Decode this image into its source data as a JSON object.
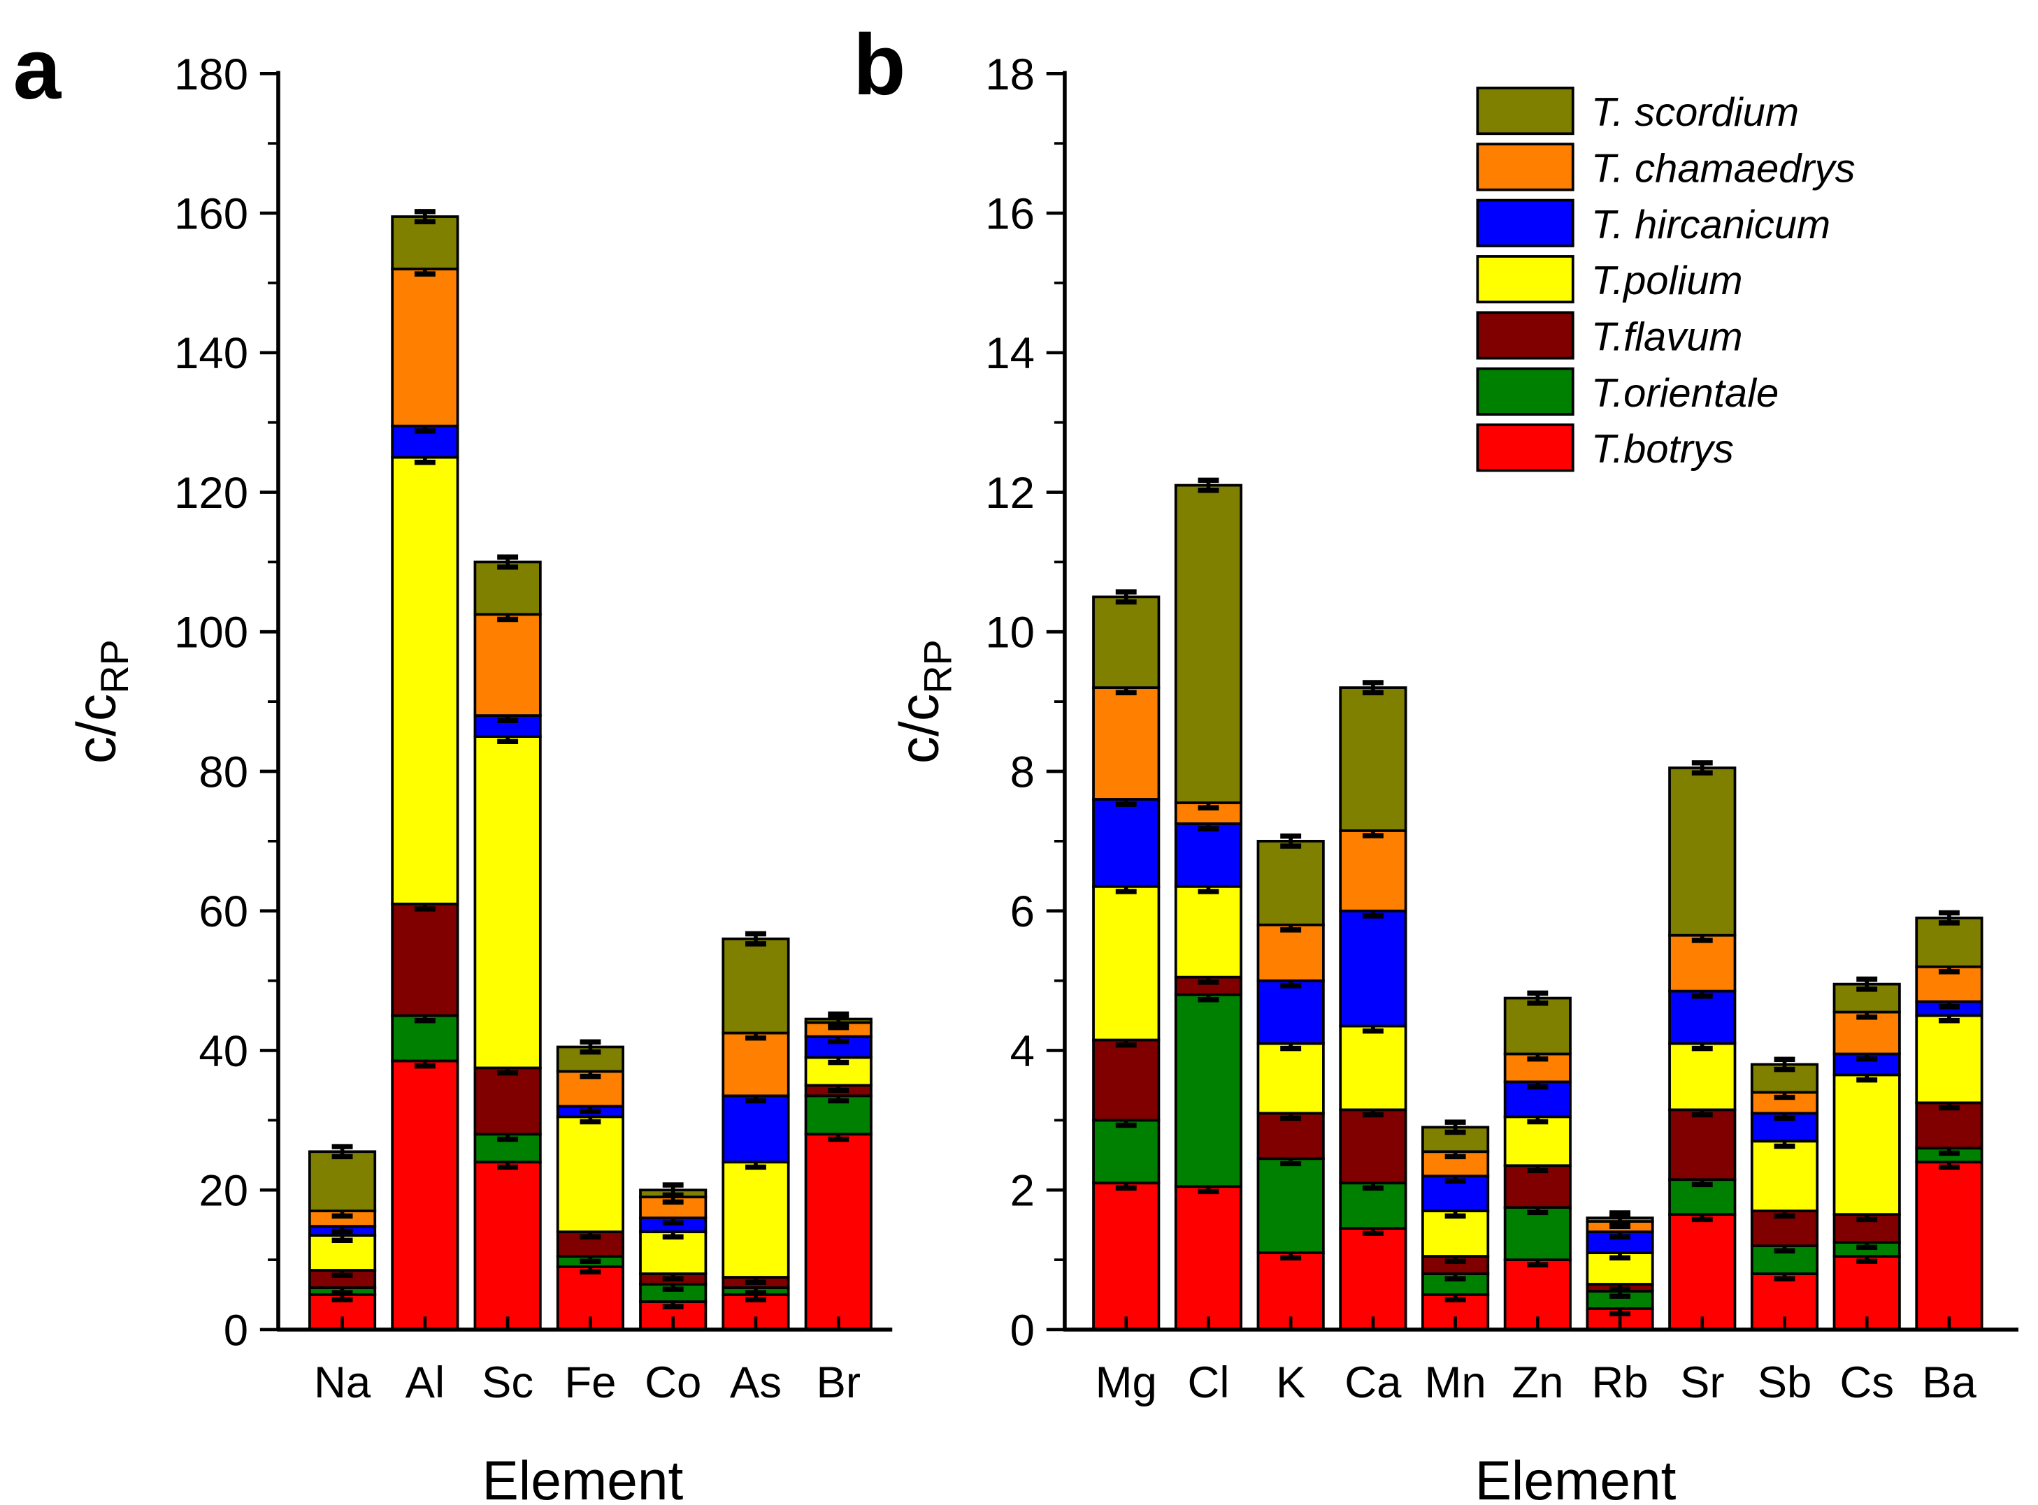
{
  "chart_data": [
    {
      "type": "bar",
      "stacked": true,
      "panel_label": "a",
      "xlabel": "Element",
      "ylabel": "c/c",
      "ylabel_sub": "RP",
      "ylim": [
        0,
        180
      ],
      "yticks": [
        0,
        20,
        40,
        60,
        80,
        100,
        120,
        140,
        160,
        180
      ],
      "categories": [
        "Na",
        "Al",
        "Sc",
        "Fe",
        "Co",
        "As",
        "Br"
      ],
      "series": [
        {
          "name": "T.botrys",
          "color": "#ff0000",
          "values": [
            5,
            38.5,
            24,
            9,
            4,
            5,
            28
          ]
        },
        {
          "name": "T.orientale",
          "color": "#008000",
          "values": [
            1,
            6.5,
            4,
            1.5,
            2.5,
            1,
            5.5
          ]
        },
        {
          "name": "T.flavum",
          "color": "#800000",
          "values": [
            2.5,
            16,
            9.5,
            3.5,
            1.5,
            1.5,
            1.5
          ]
        },
        {
          "name": "T.polium",
          "color": "#ffff00",
          "values": [
            5,
            64,
            47.5,
            16.5,
            6,
            16.5,
            4
          ]
        },
        {
          "name": "T. hircanicum",
          "color": "#0000ff",
          "values": [
            1.3,
            4.5,
            3,
            1.5,
            2,
            9.5,
            3
          ]
        },
        {
          "name": "T. chamaedrys",
          "color": "#ff8000",
          "values": [
            2.2,
            22.5,
            14.5,
            5,
            3,
            9,
            2
          ]
        },
        {
          "name": "T. scordium",
          "color": "#808000",
          "values": [
            8.5,
            7.5,
            7.5,
            3.5,
            1,
            13.5,
            0.5
          ]
        }
      ]
    },
    {
      "type": "bar",
      "stacked": true,
      "panel_label": "b",
      "xlabel": "Element",
      "ylabel": "c/c",
      "ylabel_sub": "RP",
      "ylim": [
        0,
        18
      ],
      "yticks": [
        0,
        2,
        4,
        6,
        8,
        10,
        12,
        14,
        16,
        18
      ],
      "legend_position": "top-right",
      "categories": [
        "Mg",
        "Cl",
        "K",
        "Ca",
        "Mn",
        "Zn",
        "Rb",
        "Sr",
        "Sb",
        "Cs",
        "Ba"
      ],
      "series": [
        {
          "name": "T.botrys",
          "color": "#ff0000",
          "values": [
            2.1,
            2.05,
            1.1,
            1.45,
            0.5,
            1.0,
            0.3,
            1.65,
            0.8,
            1.05,
            2.4
          ]
        },
        {
          "name": "T.orientale",
          "color": "#008000",
          "values": [
            0.9,
            2.75,
            1.35,
            0.65,
            0.3,
            0.75,
            0.25,
            0.5,
            0.4,
            0.2,
            0.2
          ]
        },
        {
          "name": "T.flavum",
          "color": "#800000",
          "values": [
            1.15,
            0.25,
            0.65,
            1.05,
            0.25,
            0.6,
            0.1,
            1.0,
            0.5,
            0.4,
            0.65
          ]
        },
        {
          "name": "T.polium",
          "color": "#ffff00",
          "values": [
            2.2,
            1.3,
            1.0,
            1.2,
            0.65,
            0.7,
            0.45,
            0.95,
            1.0,
            2.0,
            1.25
          ]
        },
        {
          "name": "T. hircanicum",
          "color": "#0000ff",
          "values": [
            1.25,
            0.9,
            0.9,
            1.65,
            0.5,
            0.5,
            0.3,
            0.75,
            0.4,
            0.3,
            0.2
          ]
        },
        {
          "name": "T. chamaedrys",
          "color": "#ff8000",
          "values": [
            1.6,
            0.3,
            0.8,
            1.15,
            0.35,
            0.4,
            0.15,
            0.8,
            0.3,
            0.6,
            0.5
          ]
        },
        {
          "name": "T. scordium",
          "color": "#808000",
          "values": [
            1.3,
            4.55,
            1.2,
            2.05,
            0.35,
            0.8,
            0.05,
            2.4,
            0.4,
            0.4,
            0.7
          ]
        }
      ]
    }
  ]
}
